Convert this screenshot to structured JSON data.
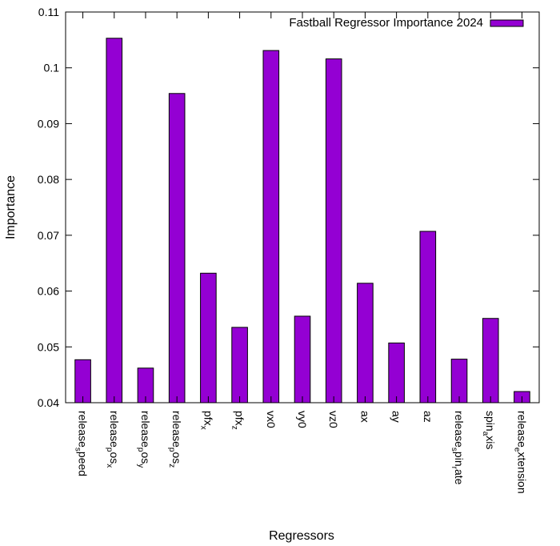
{
  "chart_data": {
    "type": "bar",
    "title": "",
    "xlabel": "Regressors",
    "ylabel": "Importance",
    "ylim": [
      0.04,
      0.11
    ],
    "yticks": [
      "0.04",
      "0.05",
      "0.06",
      "0.07",
      "0.08",
      "0.09",
      "0.1",
      "0.11"
    ],
    "grid": false,
    "legend_position": "top-right",
    "bar_color": "#9400D3",
    "categories": [
      {
        "base": "release",
        "sub": "s",
        "rest": "peed"
      },
      {
        "base": "release",
        "sub": "p",
        "rest": "os",
        "sub2": "x"
      },
      {
        "base": "release",
        "sub": "p",
        "rest": "os",
        "sub2": "y"
      },
      {
        "base": "release",
        "sub": "p",
        "rest": "os",
        "sub2": "z"
      },
      {
        "base": "pfx",
        "sub": "x"
      },
      {
        "base": "pfx",
        "sub": "z"
      },
      {
        "base": "vx0"
      },
      {
        "base": "vy0"
      },
      {
        "base": "vz0"
      },
      {
        "base": "ax"
      },
      {
        "base": "ay"
      },
      {
        "base": "az"
      },
      {
        "base": "release",
        "sub": "s",
        "rest": "pin",
        "sub2": "r",
        "rest2": "ate"
      },
      {
        "base": "spin",
        "sub": "a",
        "rest": "xis"
      },
      {
        "base": "release",
        "sub": "e",
        "rest": "xtension"
      }
    ],
    "series": [
      {
        "name": "Fastball Regressor Importance 2024",
        "values": [
          0.0477,
          0.1053,
          0.0462,
          0.0954,
          0.0632,
          0.0535,
          0.1031,
          0.0555,
          0.1016,
          0.0614,
          0.0507,
          0.0707,
          0.0478,
          0.0551,
          0.042
        ]
      }
    ]
  }
}
